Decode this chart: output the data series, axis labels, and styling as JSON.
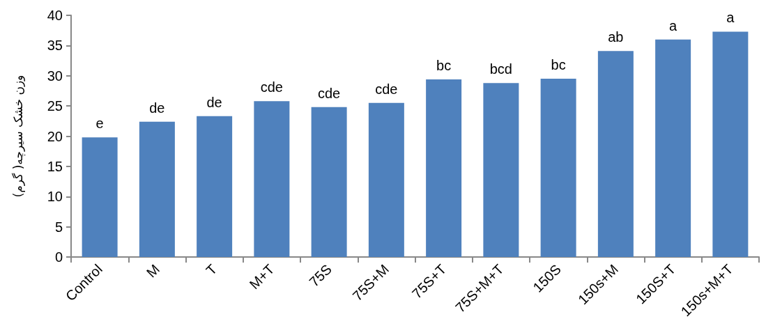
{
  "chart_data": {
    "type": "bar",
    "ylabel": "وزن خشک سیرچه( گرم)",
    "categories": [
      "Control",
      "M",
      "T",
      "M+T",
      "75S",
      "75S+M",
      "75S+T",
      "75S+M+T",
      "150S",
      "150s+M",
      "150S+T",
      "150s+M+T"
    ],
    "values": [
      19.8,
      22.4,
      23.3,
      25.8,
      24.8,
      25.5,
      29.4,
      28.8,
      29.5,
      34.1,
      36.0,
      37.3
    ],
    "value_labels": [
      "e",
      "de",
      "de",
      "cde",
      "cde",
      "cde",
      "bc",
      "bcd",
      "bc",
      "ab",
      "a",
      "a"
    ],
    "color": "#4f81bd",
    "ylim": [
      0,
      40
    ],
    "yticks": [
      0,
      5,
      10,
      15,
      20,
      25,
      30,
      35,
      40
    ],
    "grid": false
  }
}
